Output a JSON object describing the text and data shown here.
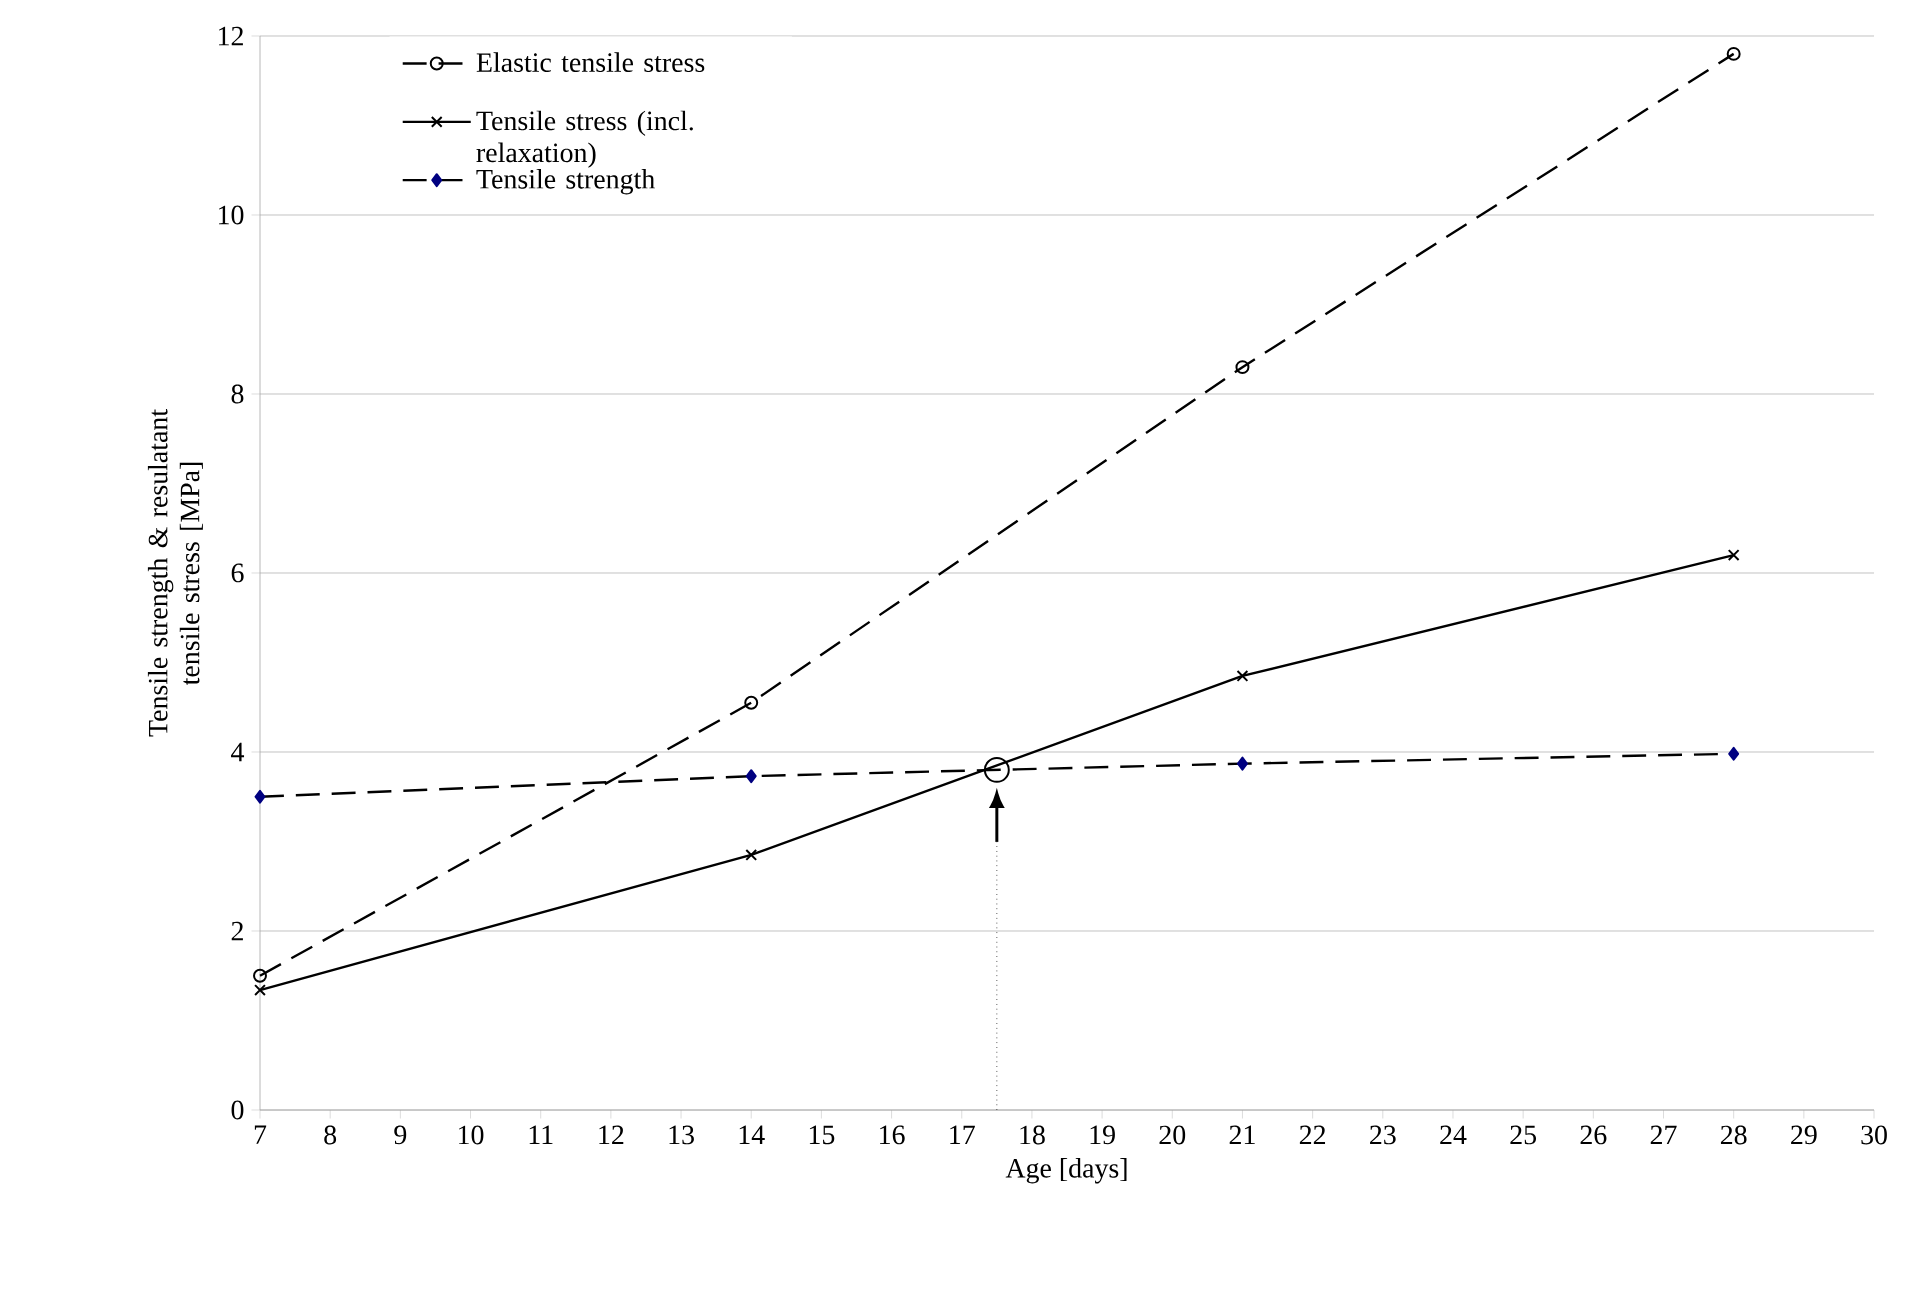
{
  "chart_data": {
    "type": "line",
    "xlabel": "Age [days]",
    "ylabel": "Tensile strength & resulatant tensile stress  [MPa]",
    "x": [
      7,
      14,
      21,
      28
    ],
    "series": [
      {
        "name": "Elastic tensile stress",
        "color": "#000000",
        "values": [
          1.5,
          4.55,
          8.3,
          11.8
        ],
        "marker": "circle",
        "line_style": "dashed"
      },
      {
        "name": "Tensile stress (incl. relaxation)",
        "color": "#000000",
        "values": [
          1.34,
          2.85,
          4.85,
          6.2
        ],
        "marker": "cross",
        "line_style": "solid"
      },
      {
        "name": "Tensile strength",
        "color": "#000080",
        "values": [
          3.5,
          3.73,
          3.87,
          3.98
        ],
        "marker": "diamond",
        "line_style": "dashed"
      },
      {
        "type": "scatter",
        "color": "#000000",
        "x": [
          17.5
        ],
        "values": [
          3.8
        ],
        "marker": "circle"
      }
    ],
    "xlim": [
      7,
      30
    ],
    "xticks": [
      7,
      8,
      9,
      10,
      11,
      12,
      13,
      14,
      15,
      16,
      17,
      18,
      19,
      20,
      21,
      22,
      23,
      24,
      25,
      26,
      27,
      28,
      29,
      30
    ],
    "ylim": [
      0,
      12
    ],
    "yticks": [
      0,
      2,
      4,
      6,
      8,
      10,
      12
    ],
    "grid": "y",
    "legend": "top left",
    "ref_lines": [
      {
        "axis": "x",
        "value": 17.5,
        "line_style": "dotted"
      }
    ]
  }
}
